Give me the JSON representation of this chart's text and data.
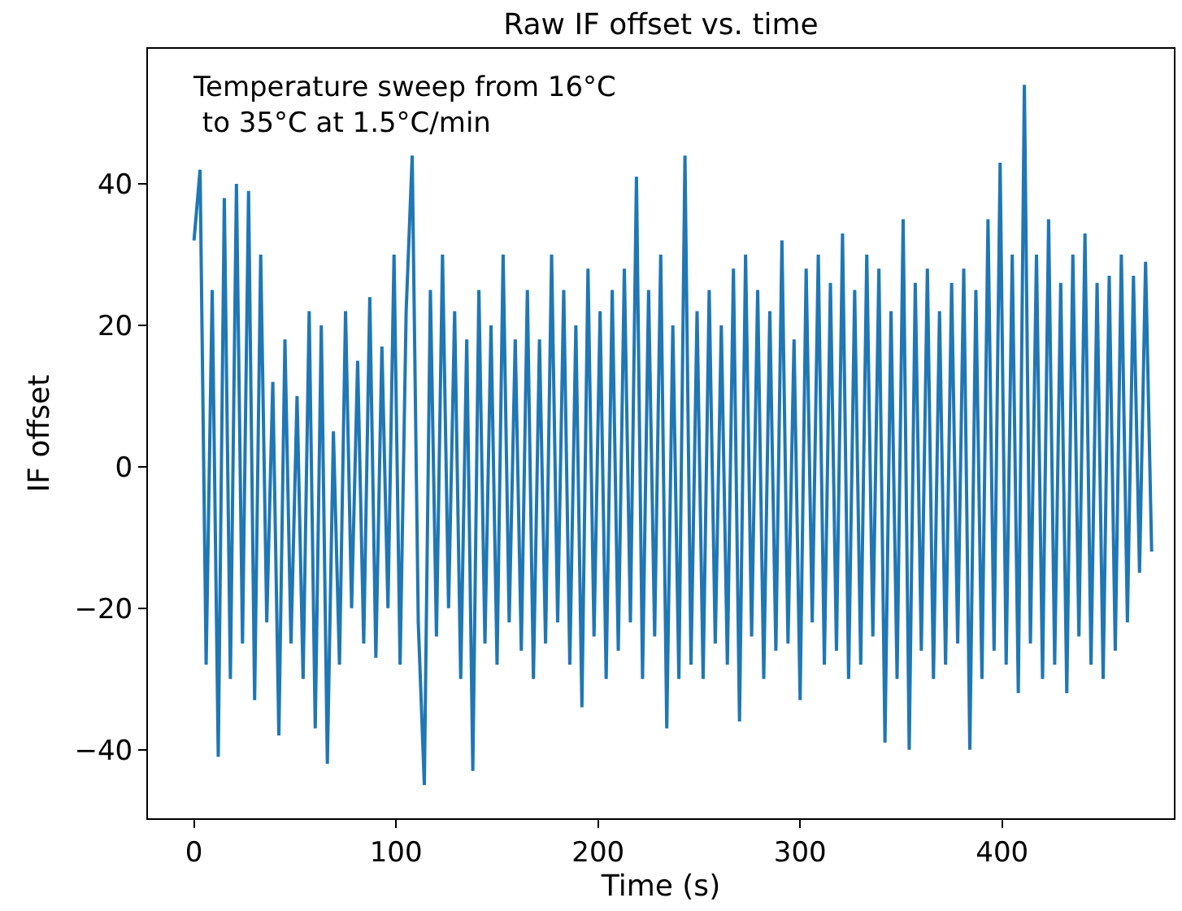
{
  "chart_data": {
    "type": "line",
    "title": "Raw IF offset vs. time",
    "xlabel": "Time (s)",
    "ylabel": "IF offset",
    "annotations": [
      "Temperature sweep from 16°C\n to 35°C at 1.5°C/min"
    ],
    "x": [
      0,
      3,
      6,
      9,
      12,
      15,
      18,
      21,
      24,
      27,
      30,
      33,
      36,
      39,
      42,
      45,
      48,
      51,
      54,
      57,
      60,
      63,
      66,
      69,
      72,
      75,
      78,
      81,
      84,
      87,
      90,
      93,
      96,
      99,
      102,
      105,
      108,
      111,
      114,
      117,
      120,
      123,
      126,
      129,
      132,
      135,
      138,
      141,
      144,
      147,
      150,
      153,
      156,
      159,
      162,
      165,
      168,
      171,
      174,
      177,
      180,
      183,
      186,
      189,
      192,
      195,
      198,
      201,
      204,
      207,
      210,
      213,
      216,
      219,
      222,
      225,
      228,
      231,
      234,
      237,
      240,
      243,
      246,
      249,
      252,
      255,
      258,
      261,
      264,
      267,
      270,
      273,
      276,
      279,
      282,
      285,
      288,
      291,
      294,
      297,
      300,
      303,
      306,
      309,
      312,
      315,
      318,
      321,
      324,
      327,
      330,
      333,
      336,
      339,
      342,
      345,
      348,
      351,
      354,
      357,
      360,
      363,
      366,
      369,
      372,
      375,
      378,
      381,
      384,
      387,
      390,
      393,
      396,
      399,
      402,
      405,
      408,
      411,
      414,
      417,
      420,
      423,
      426,
      429,
      432,
      435,
      438,
      441,
      444,
      447,
      450,
      453,
      456,
      459,
      462,
      465,
      468,
      471,
      474
    ],
    "series": [
      {
        "color": "#1f77b4",
        "values": [
          32,
          42,
          -28,
          25,
          -41,
          38,
          -30,
          40,
          -25,
          39,
          -33,
          30,
          -22,
          12,
          -38,
          18,
          -25,
          10,
          -30,
          22,
          -37,
          20,
          -42,
          5,
          -28,
          22,
          -20,
          15,
          -25,
          24,
          -27,
          17,
          -20,
          30,
          -28,
          22,
          44,
          -22,
          -45,
          25,
          -24,
          30,
          -20,
          22,
          -30,
          18,
          -43,
          25,
          -25,
          20,
          -28,
          30,
          -22,
          18,
          -26,
          25,
          -30,
          18,
          -25,
          30,
          -22,
          25,
          -28,
          20,
          -34,
          28,
          -24,
          22,
          -30,
          25,
          -26,
          28,
          -22,
          41,
          -30,
          25,
          -24,
          30,
          -37,
          20,
          -30,
          44,
          -28,
          22,
          -30,
          25,
          -25,
          20,
          -28,
          28,
          -36,
          30,
          -24,
          25,
          -30,
          22,
          -26,
          32,
          -25,
          18,
          -33,
          28,
          -22,
          30,
          -28,
          26,
          -26,
          33,
          -30,
          25,
          -28,
          30,
          -24,
          28,
          -39,
          22,
          -30,
          35,
          -40,
          26,
          -26,
          28,
          -30,
          22,
          -28,
          26,
          -25,
          28,
          -40,
          25,
          -30,
          35,
          -26,
          43,
          -28,
          30,
          -32,
          54,
          -25,
          30,
          -30,
          35,
          -28,
          26,
          -32,
          30,
          -24,
          33,
          -28,
          26,
          -30,
          27,
          -26,
          30,
          -22,
          27,
          -15,
          29,
          -12
        ]
      }
    ],
    "xlim": [
      -22.8,
      485
    ],
    "xticks": [
      0,
      100,
      200,
      300,
      400
    ],
    "ylim": [
      -49.7,
      59.1
    ],
    "yticks": [
      -40,
      -20,
      0,
      20,
      40
    ],
    "grid": false,
    "marker": "none",
    "line_style": "solid"
  }
}
